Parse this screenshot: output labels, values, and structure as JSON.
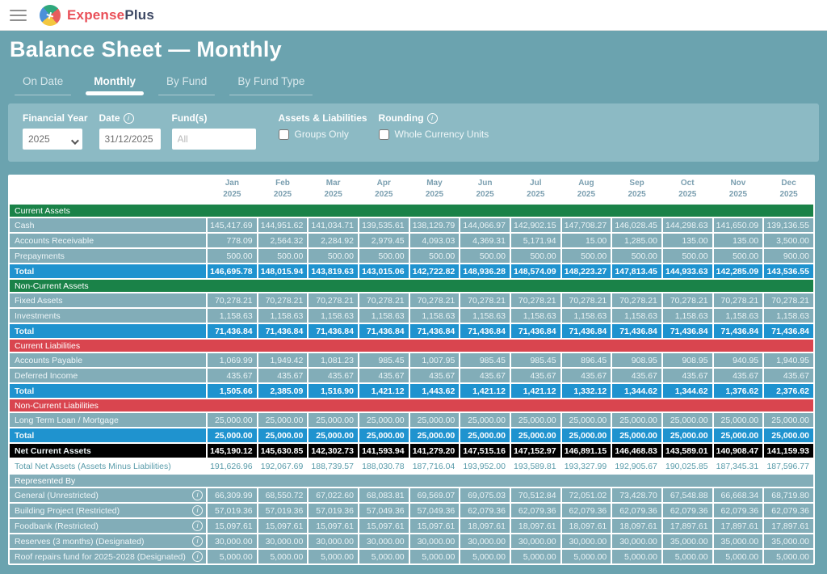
{
  "brand": {
    "name_primary": "Expense",
    "name_secondary": "Plus"
  },
  "page": {
    "title": "Balance Sheet — Monthly"
  },
  "tabs": [
    {
      "label": "On Date",
      "active": false
    },
    {
      "label": "Monthly",
      "active": true
    },
    {
      "label": "By Fund",
      "active": false
    },
    {
      "label": "By Fund Type",
      "active": false
    }
  ],
  "filters": {
    "financial_year": {
      "label": "Financial Year",
      "value": "2025"
    },
    "date": {
      "label": "Date",
      "value": "31/12/2025",
      "has_info": true
    },
    "funds": {
      "label": "Fund(s)",
      "placeholder": "All"
    },
    "assets_liabilities": {
      "label": "Assets & Liabilities",
      "checkbox_label": "Groups Only",
      "checked": false
    },
    "rounding": {
      "label": "Rounding",
      "checkbox_label": "Whole Currency Units",
      "checked": false,
      "has_info": true
    }
  },
  "colors": {
    "page_teal": "#6ba3af",
    "panel_teal": "#8cbac4",
    "row_teal": "#82adb8",
    "total_blue": "#1f93cf",
    "group_green": "#1a8248",
    "group_red": "#d9454f",
    "net_row_text": "#5b9dab",
    "brand_red": "#e94f58",
    "brand_navy": "#3c4763"
  },
  "table": {
    "months": [
      {
        "month": "Jan",
        "year": "2025"
      },
      {
        "month": "Feb",
        "year": "2025"
      },
      {
        "month": "Mar",
        "year": "2025"
      },
      {
        "month": "Apr",
        "year": "2025"
      },
      {
        "month": "May",
        "year": "2025"
      },
      {
        "month": "Jun",
        "year": "2025"
      },
      {
        "month": "Jul",
        "year": "2025"
      },
      {
        "month": "Aug",
        "year": "2025"
      },
      {
        "month": "Sep",
        "year": "2025"
      },
      {
        "month": "Oct",
        "year": "2025"
      },
      {
        "month": "Nov",
        "year": "2025"
      },
      {
        "month": "Dec",
        "year": "2025"
      }
    ],
    "rows": [
      {
        "type": "group-green",
        "label": "Current Assets"
      },
      {
        "type": "data",
        "label": "Cash",
        "values": [
          "145,417.69",
          "144,951.62",
          "141,034.71",
          "139,535.61",
          "138,129.79",
          "144,066.97",
          "142,902.15",
          "147,708.27",
          "146,028.45",
          "144,298.63",
          "141,650.09",
          "139,136.55"
        ]
      },
      {
        "type": "data",
        "label": "Accounts Receivable",
        "values": [
          "778.09",
          "2,564.32",
          "2,284.92",
          "2,979.45",
          "4,093.03",
          "4,369.31",
          "5,171.94",
          "15.00",
          "1,285.00",
          "135.00",
          "135.00",
          "3,500.00"
        ]
      },
      {
        "type": "data",
        "label": "Prepayments",
        "values": [
          "500.00",
          "500.00",
          "500.00",
          "500.00",
          "500.00",
          "500.00",
          "500.00",
          "500.00",
          "500.00",
          "500.00",
          "500.00",
          "900.00"
        ]
      },
      {
        "type": "total",
        "label": "Total",
        "values": [
          "146,695.78",
          "148,015.94",
          "143,819.63",
          "143,015.06",
          "142,722.82",
          "148,936.28",
          "148,574.09",
          "148,223.27",
          "147,813.45",
          "144,933.63",
          "142,285.09",
          "143,536.55"
        ]
      },
      {
        "type": "group-green",
        "label": "Non-Current Assets"
      },
      {
        "type": "data",
        "label": "Fixed Assets",
        "values": [
          "70,278.21",
          "70,278.21",
          "70,278.21",
          "70,278.21",
          "70,278.21",
          "70,278.21",
          "70,278.21",
          "70,278.21",
          "70,278.21",
          "70,278.21",
          "70,278.21",
          "70,278.21"
        ]
      },
      {
        "type": "data",
        "label": "Investments",
        "values": [
          "1,158.63",
          "1,158.63",
          "1,158.63",
          "1,158.63",
          "1,158.63",
          "1,158.63",
          "1,158.63",
          "1,158.63",
          "1,158.63",
          "1,158.63",
          "1,158.63",
          "1,158.63"
        ]
      },
      {
        "type": "total",
        "label": "Total",
        "values": [
          "71,436.84",
          "71,436.84",
          "71,436.84",
          "71,436.84",
          "71,436.84",
          "71,436.84",
          "71,436.84",
          "71,436.84",
          "71,436.84",
          "71,436.84",
          "71,436.84",
          "71,436.84"
        ]
      },
      {
        "type": "group-red",
        "label": "Current Liabilities"
      },
      {
        "type": "data",
        "label": "Accounts Payable",
        "values": [
          "1,069.99",
          "1,949.42",
          "1,081.23",
          "985.45",
          "1,007.95",
          "985.45",
          "985.45",
          "896.45",
          "908.95",
          "908.95",
          "940.95",
          "1,940.95"
        ]
      },
      {
        "type": "data",
        "label": "Deferred Income",
        "values": [
          "435.67",
          "435.67",
          "435.67",
          "435.67",
          "435.67",
          "435.67",
          "435.67",
          "435.67",
          "435.67",
          "435.67",
          "435.67",
          "435.67"
        ]
      },
      {
        "type": "total",
        "label": "Total",
        "values": [
          "1,505.66",
          "2,385.09",
          "1,516.90",
          "1,421.12",
          "1,443.62",
          "1,421.12",
          "1,421.12",
          "1,332.12",
          "1,344.62",
          "1,344.62",
          "1,376.62",
          "2,376.62"
        ]
      },
      {
        "type": "group-red",
        "label": "Non-Current Liabilities"
      },
      {
        "type": "data",
        "label": "Long Term Loan / Mortgage",
        "values": [
          "25,000.00",
          "25,000.00",
          "25,000.00",
          "25,000.00",
          "25,000.00",
          "25,000.00",
          "25,000.00",
          "25,000.00",
          "25,000.00",
          "25,000.00",
          "25,000.00",
          "25,000.00"
        ]
      },
      {
        "type": "total",
        "label": "Total",
        "values": [
          "25,000.00",
          "25,000.00",
          "25,000.00",
          "25,000.00",
          "25,000.00",
          "25,000.00",
          "25,000.00",
          "25,000.00",
          "25,000.00",
          "25,000.00",
          "25,000.00",
          "25,000.00"
        ]
      },
      {
        "type": "black",
        "label": "Net Current Assets",
        "values": [
          "145,190.12",
          "145,630.85",
          "142,302.73",
          "141,593.94",
          "141,279.20",
          "147,515.16",
          "147,152.97",
          "146,891.15",
          "146,468.83",
          "143,589.01",
          "140,908.47",
          "141,159.93"
        ]
      },
      {
        "type": "net",
        "label": "Total Net Assets (Assets Minus Liabilities)",
        "values": [
          "191,626.96",
          "192,067.69",
          "188,739.57",
          "188,030.78",
          "187,716.04",
          "193,952.00",
          "193,589.81",
          "193,327.99",
          "192,905.67",
          "190,025.85",
          "187,345.31",
          "187,596.77"
        ]
      },
      {
        "type": "rep-header",
        "label": "Represented By"
      },
      {
        "type": "data",
        "info": true,
        "label": "General (Unrestricted)",
        "values": [
          "66,309.99",
          "68,550.72",
          "67,022.60",
          "68,083.81",
          "69,569.07",
          "69,075.03",
          "70,512.84",
          "72,051.02",
          "73,428.70",
          "67,548.88",
          "66,668.34",
          "68,719.80"
        ]
      },
      {
        "type": "data",
        "info": true,
        "label": "Building Project (Restricted)",
        "values": [
          "57,019.36",
          "57,019.36",
          "57,019.36",
          "57,049.36",
          "57,049.36",
          "62,079.36",
          "62,079.36",
          "62,079.36",
          "62,079.36",
          "62,079.36",
          "62,079.36",
          "62,079.36"
        ]
      },
      {
        "type": "data",
        "info": true,
        "label": "Foodbank (Restricted)",
        "values": [
          "15,097.61",
          "15,097.61",
          "15,097.61",
          "15,097.61",
          "15,097.61",
          "18,097.61",
          "18,097.61",
          "18,097.61",
          "18,097.61",
          "17,897.61",
          "17,897.61",
          "17,897.61"
        ]
      },
      {
        "type": "data",
        "info": true,
        "label": "Reserves (3 months) (Designated)",
        "values": [
          "30,000.00",
          "30,000.00",
          "30,000.00",
          "30,000.00",
          "30,000.00",
          "30,000.00",
          "30,000.00",
          "30,000.00",
          "30,000.00",
          "35,000.00",
          "35,000.00",
          "35,000.00"
        ]
      },
      {
        "type": "data",
        "info": true,
        "label": "Roof repairs fund for 2025-2028 (Designated)",
        "values": [
          "5,000.00",
          "5,000.00",
          "5,000.00",
          "5,000.00",
          "5,000.00",
          "5,000.00",
          "5,000.00",
          "5,000.00",
          "5,000.00",
          "5,000.00",
          "5,000.00",
          "5,000.00"
        ]
      }
    ]
  }
}
